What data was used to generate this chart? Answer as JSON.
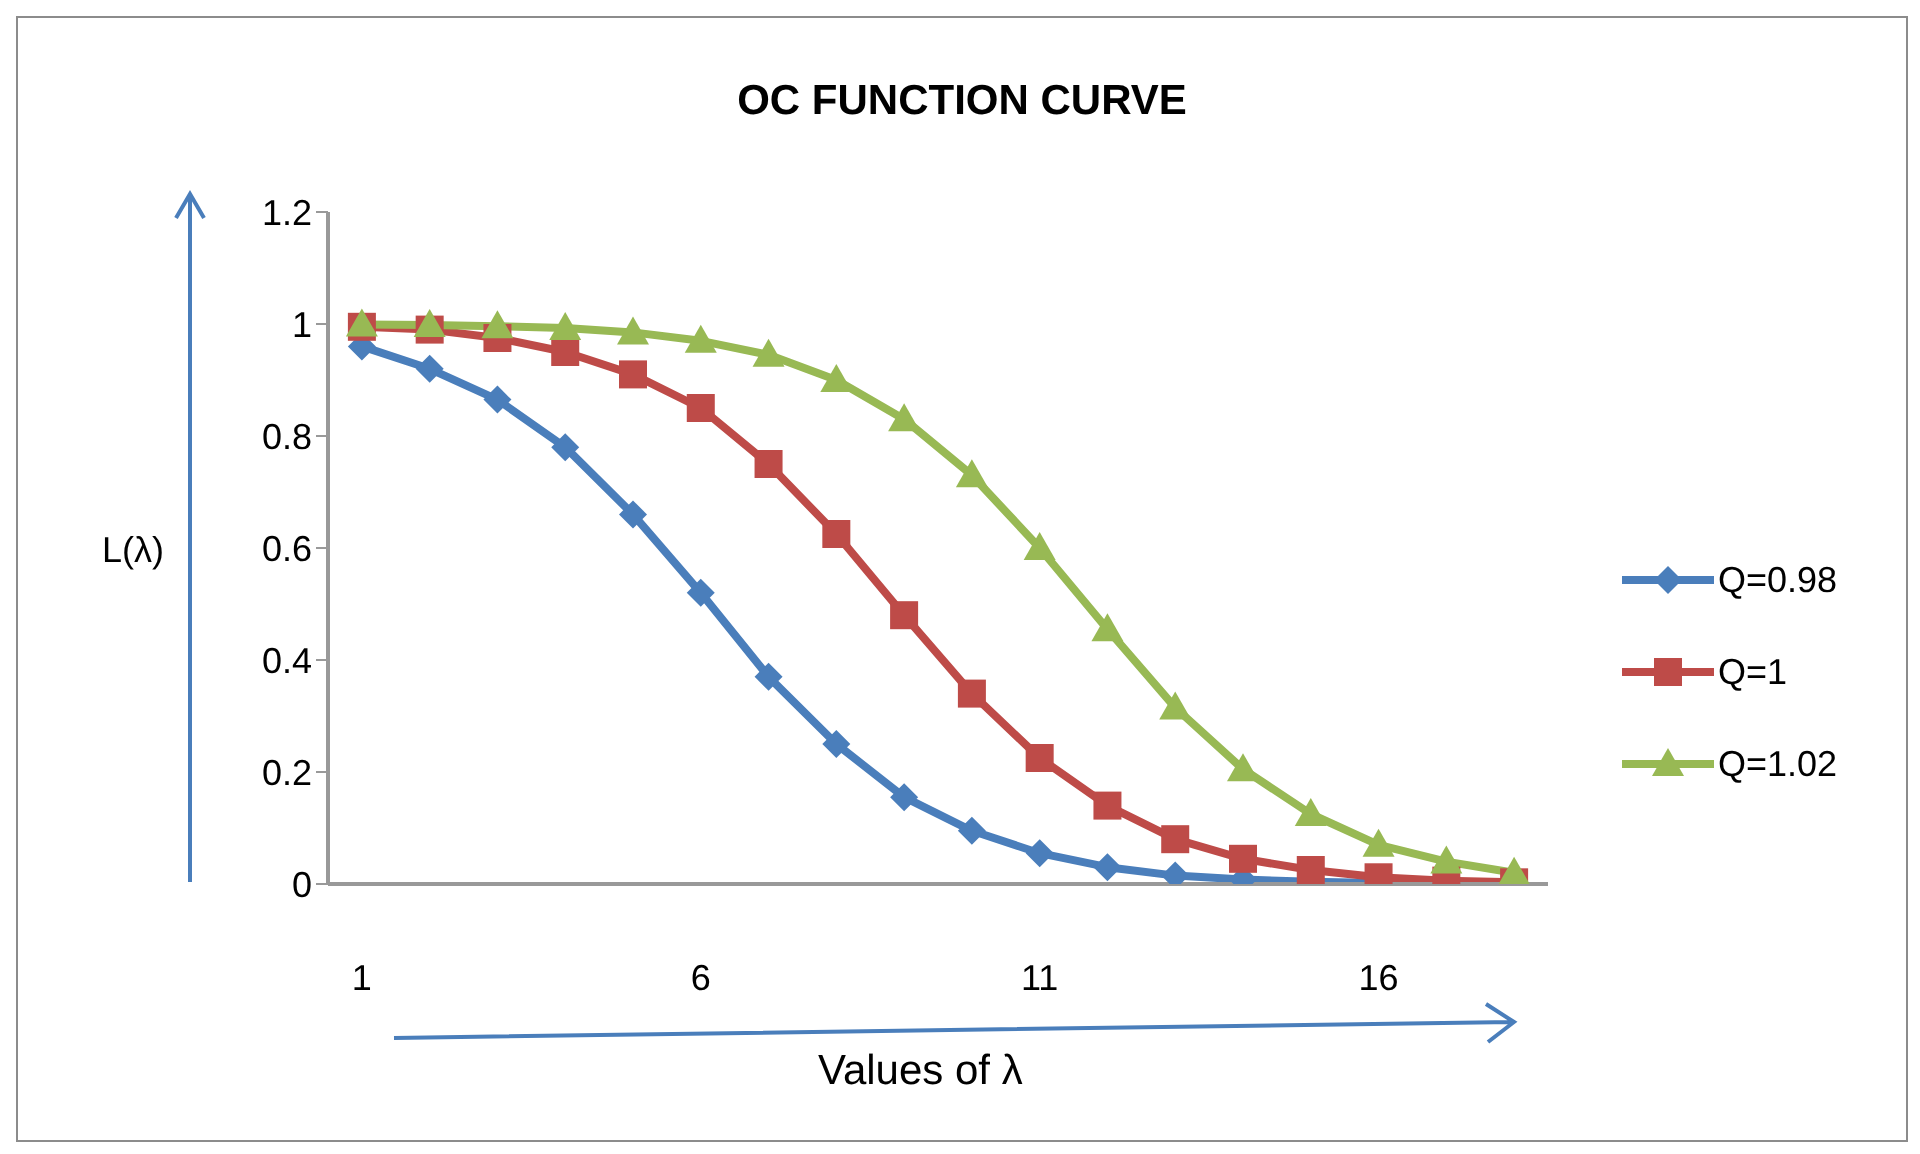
{
  "chart_data": {
    "type": "line",
    "title": "OC FUNCTION CURVE",
    "xlabel": "Values of λ",
    "ylabel": "L(λ)",
    "x": [
      1,
      2,
      3,
      4,
      5,
      6,
      7,
      8,
      9,
      10,
      11,
      12,
      13,
      14,
      15,
      16,
      17,
      18
    ],
    "xlim": [
      0.5,
      18.5
    ],
    "xticks": [
      1,
      6,
      11,
      16
    ],
    "ylim": [
      0,
      1.2
    ],
    "yticks": [
      0,
      0.2,
      0.4,
      0.6,
      0.8,
      1,
      1.2
    ],
    "grid": false,
    "legend": "right",
    "line_style": "solid",
    "series": [
      {
        "name": "Q=0.98",
        "color": "#4a7ebb",
        "marker": "diamond",
        "values": [
          0.96,
          0.92,
          0.865,
          0.78,
          0.66,
          0.52,
          0.37,
          0.25,
          0.155,
          0.095,
          0.055,
          0.03,
          0.015,
          0.008,
          0.004,
          0.002,
          0.001,
          0.001
        ]
      },
      {
        "name": "Q=1",
        "color": "#be4b48",
        "marker": "square",
        "values": [
          0.995,
          0.99,
          0.975,
          0.95,
          0.91,
          0.85,
          0.75,
          0.625,
          0.48,
          0.34,
          0.225,
          0.14,
          0.08,
          0.045,
          0.025,
          0.012,
          0.006,
          0.003
        ]
      },
      {
        "name": "Q=1.02",
        "color": "#98b954",
        "marker": "triangle",
        "values": [
          0.999,
          0.998,
          0.996,
          0.993,
          0.985,
          0.97,
          0.945,
          0.9,
          0.83,
          0.73,
          0.6,
          0.455,
          0.315,
          0.205,
          0.125,
          0.07,
          0.04,
          0.02
        ]
      }
    ]
  }
}
